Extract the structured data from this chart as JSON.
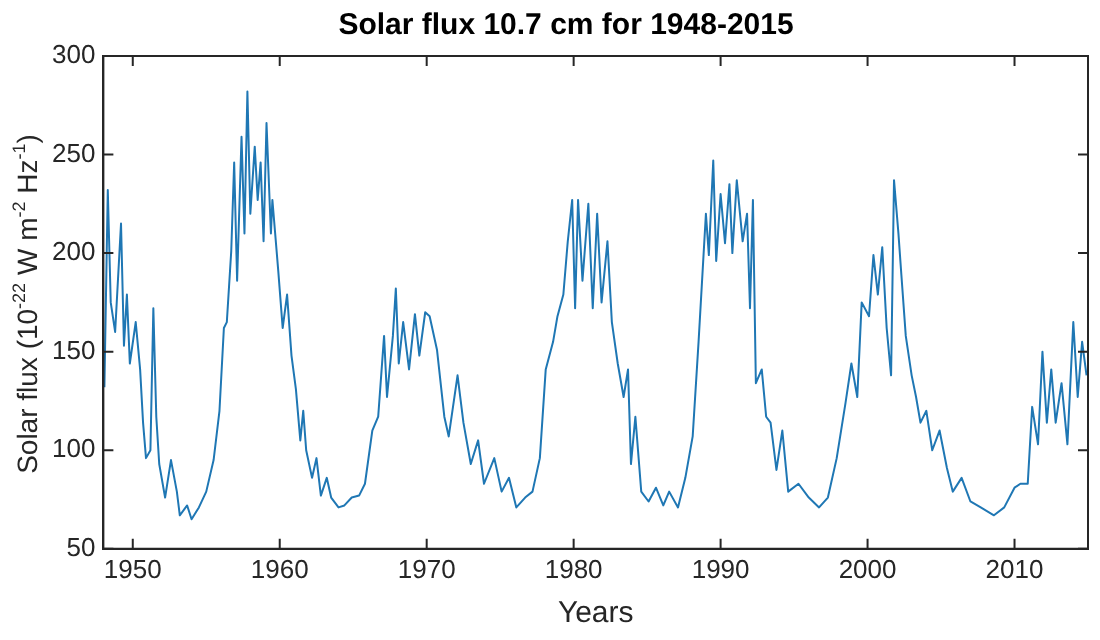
{
  "chart_data": {
    "type": "line",
    "title": "Solar flux 10.7 cm for 1948-2015",
    "xlabel": "Years",
    "ylabel": "Solar flux (10$^{-22}$ W m$^{-2}$ Hz$^{-1}$)",
    "xlim": [
      1948,
      2015
    ],
    "xticks": [
      1950,
      1960,
      1970,
      1980,
      1990,
      2000,
      2010
    ],
    "ylim": [
      50,
      300
    ],
    "yticks": [
      50,
      100,
      150,
      200,
      250,
      300
    ],
    "grid": false,
    "legend": false,
    "marker": "none",
    "line_style": "solid",
    "series": [
      {
        "color": "#1f77b4",
        "x": [
          1948.07,
          1948.3,
          1948.5,
          1948.8,
          1949.2,
          1949.4,
          1949.6,
          1949.8,
          1950.2,
          1950.5,
          1950.7,
          1950.9,
          1951.2,
          1951.4,
          1951.6,
          1951.8,
          1952.2,
          1952.6,
          1953.0,
          1953.2,
          1953.7,
          1954.0,
          1954.5,
          1955.0,
          1955.5,
          1955.9,
          1956.2,
          1956.4,
          1956.7,
          1956.9,
          1957.1,
          1957.4,
          1957.6,
          1957.8,
          1958.0,
          1958.3,
          1958.5,
          1958.7,
          1958.9,
          1959.1,
          1959.4,
          1959.5,
          1959.9,
          1960.2,
          1960.5,
          1960.8,
          1961.1,
          1961.4,
          1961.6,
          1961.8,
          1962.2,
          1962.5,
          1962.8,
          1963.2,
          1963.5,
          1964.0,
          1964.4,
          1964.9,
          1965.4,
          1965.8,
          1966.3,
          1966.7,
          1967.1,
          1967.3,
          1967.7,
          1967.9,
          1968.1,
          1968.4,
          1968.8,
          1969.2,
          1969.5,
          1969.9,
          1970.2,
          1970.7,
          1971.2,
          1971.5,
          1972.1,
          1972.5,
          1973.0,
          1973.5,
          1973.9,
          1974.6,
          1975.1,
          1975.6,
          1976.1,
          1976.7,
          1977.2,
          1977.7,
          1978.1,
          1978.6,
          1978.9,
          1979.3,
          1979.6,
          1979.9,
          1980.1,
          1980.3,
          1980.6,
          1981.0,
          1981.3,
          1981.6,
          1981.9,
          1982.3,
          1982.6,
          1983.0,
          1983.4,
          1983.7,
          1983.9,
          1984.2,
          1984.6,
          1985.1,
          1985.6,
          1986.1,
          1986.5,
          1987.1,
          1987.6,
          1988.1,
          1988.5,
          1989.0,
          1989.2,
          1989.5,
          1989.7,
          1990.0,
          1990.3,
          1990.6,
          1990.8,
          1991.1,
          1991.5,
          1991.8,
          1992.0,
          1992.2,
          1992.4,
          1992.8,
          1993.1,
          1993.4,
          1993.8,
          1994.2,
          1994.6,
          1995.3,
          1996.0,
          1996.7,
          1997.3,
          1997.9,
          1998.5,
          1998.9,
          1999.3,
          1999.6,
          2000.1,
          2000.4,
          2000.7,
          2001.0,
          2001.3,
          2001.6,
          2001.8,
          2002.1,
          2002.3,
          2002.6,
          2003.0,
          2003.3,
          2003.6,
          2004.0,
          2004.4,
          2004.9,
          2005.4,
          2005.8,
          2006.4,
          2007.0,
          2007.7,
          2008.6,
          2009.3,
          2010.0,
          2010.4,
          2010.9,
          2011.2,
          2011.6,
          2011.9,
          2012.2,
          2012.5,
          2012.8,
          2013.2,
          2013.6,
          2014.0,
          2014.3,
          2014.6,
          2014.9
        ],
        "values": [
          132,
          232,
          175,
          160,
          215,
          153,
          179,
          144,
          165,
          141,
          114,
          96,
          100,
          172,
          117,
          93,
          76,
          95,
          79,
          67,
          72,
          65,
          71,
          79,
          95,
          120,
          162,
          165,
          201,
          246,
          186,
          259,
          210,
          282,
          220,
          254,
          227,
          246,
          206,
          266,
          210,
          227,
          191,
          162,
          179,
          148,
          131,
          105,
          120,
          100,
          86,
          96,
          77,
          86,
          76,
          71,
          72,
          76,
          77,
          83,
          110,
          117,
          158,
          127,
          158,
          182,
          144,
          165,
          141,
          169,
          148,
          170,
          168,
          151,
          117,
          107,
          138,
          114,
          93,
          105,
          83,
          96,
          79,
          86,
          71,
          76,
          79,
          96,
          141,
          155,
          168,
          179,
          206,
          227,
          172,
          227,
          186,
          225,
          172,
          220,
          175,
          206,
          165,
          144,
          127,
          141,
          93,
          117,
          79,
          74,
          81,
          72,
          79,
          71,
          86,
          107,
          155,
          220,
          199,
          247,
          196,
          230,
          205,
          235,
          200,
          237,
          206,
          220,
          172,
          227,
          134,
          141,
          117,
          114,
          90,
          110,
          79,
          83,
          76,
          71,
          76,
          96,
          124,
          144,
          127,
          175,
          168,
          199,
          179,
          203,
          162,
          138,
          237,
          210,
          189,
          158,
          138,
          127,
          114,
          120,
          100,
          110,
          91,
          79,
          86,
          74,
          71,
          67,
          71,
          81,
          83,
          83,
          122,
          103,
          150,
          114,
          141,
          114,
          134,
          103,
          165,
          127,
          155,
          138
        ]
      }
    ]
  }
}
